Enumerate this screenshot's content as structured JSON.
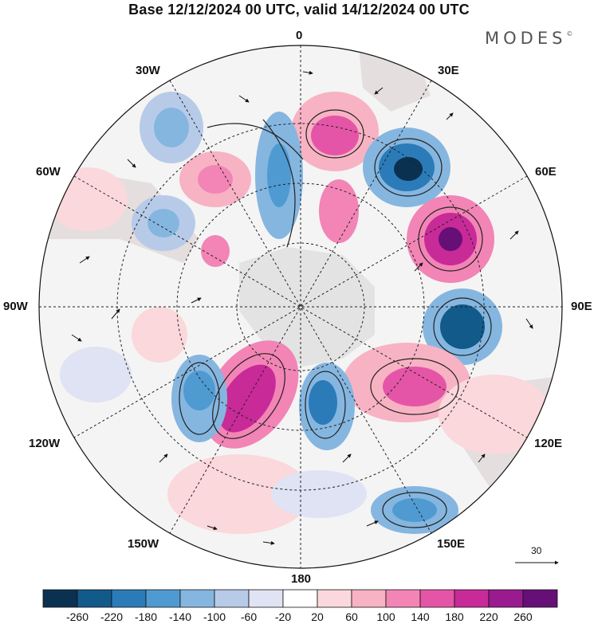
{
  "title": "Base 12/12/2024 00 UTC, valid 14/12/2024 00 UTC",
  "brand": {
    "name": "MODES",
    "mark": "©"
  },
  "projection": "south polar stereographic",
  "longitude_labels": {
    "top": "0",
    "bottom": "180",
    "left": "90W",
    "right": "90E",
    "nw_upper": "30W",
    "nw_lower": "60W",
    "ne_upper": "30E",
    "ne_lower": "60E",
    "sw_upper": "120W",
    "sw_lower": "150W",
    "se_upper": "120E",
    "se_lower": "150E"
  },
  "reference_vector": {
    "label": "30"
  },
  "colorbar": {
    "colors": [
      "#0b3150",
      "#125a8a",
      "#2b7bb9",
      "#4f9bd1",
      "#85b6e0",
      "#b7cbe8",
      "#dfe3f3",
      "#ffffff",
      "#fbd8dc",
      "#f7b3c3",
      "#f285b5",
      "#e555a7",
      "#c82a98",
      "#9a1a8f",
      "#661077"
    ],
    "tick_labels": [
      "-260",
      "-220",
      "-180",
      "-140",
      "-100",
      "-60",
      "-20",
      "20",
      "60",
      "100",
      "140",
      "180",
      "220",
      "260"
    ]
  },
  "field_palette": {
    "land": "#e5dede",
    "ice": "#e3e3e3",
    "coast": "#888888"
  }
}
